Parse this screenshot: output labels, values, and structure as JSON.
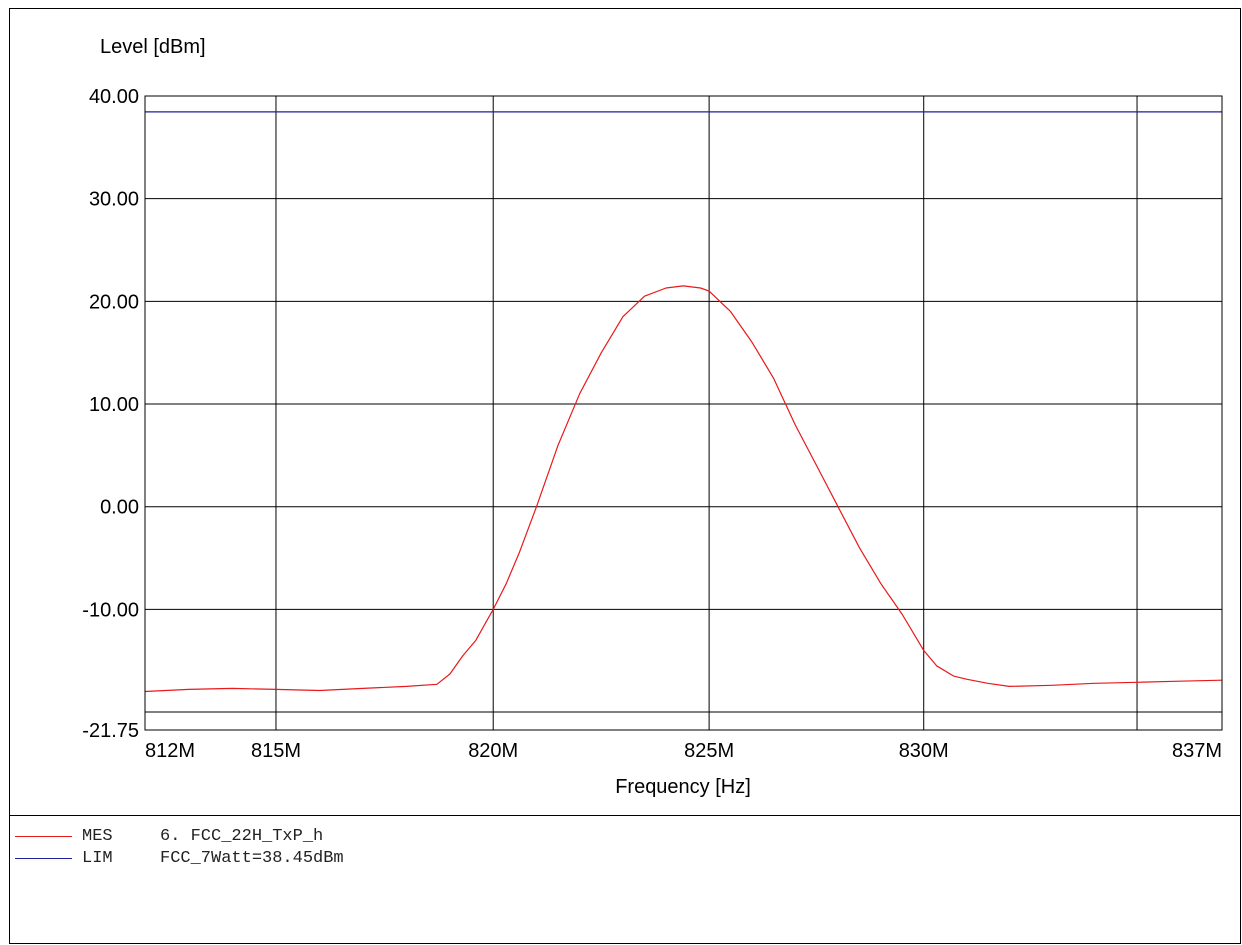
{
  "chart_data": {
    "type": "line",
    "ylabel": "Level [dBm]",
    "xlabel": "Frequency [Hz]",
    "x_scale": "log",
    "xlim": [
      812000000,
      837000000
    ],
    "ylim": [
      -21.75,
      40.0
    ],
    "y_ticks": [
      {
        "value": 40.0,
        "label": "40.00"
      },
      {
        "value": 30.0,
        "label": "30.00"
      },
      {
        "value": 20.0,
        "label": "20.00"
      },
      {
        "value": 10.0,
        "label": "10.00"
      },
      {
        "value": 0.0,
        "label": "0.00"
      },
      {
        "value": -10.0,
        "label": "-10.00"
      },
      {
        "value": -21.75,
        "label": "-21.75"
      }
    ],
    "x_ticks": [
      {
        "value": 812000000,
        "label": "812M"
      },
      {
        "value": 815000000,
        "label": "815M"
      },
      {
        "value": 820000000,
        "label": "820M"
      },
      {
        "value": 825000000,
        "label": "825M"
      },
      {
        "value": 830000000,
        "label": "830M"
      },
      {
        "value": 837000000,
        "label": "837M"
      }
    ],
    "x_gridlines": [
      815000000,
      820000000,
      825000000,
      830000000,
      835000000
    ],
    "y_gridlines": [
      30.0,
      20.0,
      10.0,
      0.0,
      -10.0,
      -20.0
    ],
    "grid": true,
    "series": [
      {
        "name": "MES",
        "color": "#e8191b",
        "x": [
          812000000,
          813000000,
          814000000,
          815000000,
          816000000,
          817000000,
          818000000,
          818700000,
          819000000,
          819300000,
          819600000,
          819800000,
          820000000,
          820300000,
          820600000,
          821000000,
          821500000,
          822000000,
          822500000,
          823000000,
          823500000,
          824000000,
          824400000,
          824800000,
          825000000,
          825500000,
          826000000,
          826500000,
          827000000,
          827500000,
          828000000,
          828500000,
          829000000,
          829500000,
          830000000,
          830300000,
          830700000,
          831000000,
          831500000,
          832000000,
          833000000,
          834000000,
          835000000,
          836000000,
          837000000
        ],
        "y": [
          -18.0,
          -17.8,
          -17.7,
          -17.8,
          -17.9,
          -17.7,
          -17.5,
          -17.3,
          -16.3,
          -14.5,
          -13.0,
          -11.5,
          -10.0,
          -7.5,
          -4.5,
          0.0,
          6.0,
          11.0,
          15.0,
          18.5,
          20.5,
          21.3,
          21.5,
          21.3,
          21.0,
          19.0,
          16.0,
          12.5,
          8.0,
          4.0,
          0.0,
          -4.0,
          -7.5,
          -10.5,
          -14.0,
          -15.5,
          -16.5,
          -16.8,
          -17.2,
          -17.5,
          -17.4,
          -17.2,
          -17.1,
          -17.0,
          -16.9
        ]
      },
      {
        "name": "LIM",
        "color": "#1e1e9f",
        "x": [
          812000000,
          837000000
        ],
        "y": [
          38.45,
          38.45
        ]
      }
    ],
    "bottom_line": -20.0
  },
  "legend": [
    {
      "tag": "MES",
      "text": "6. FCC_22H_TxP_h",
      "color": "#e8191b"
    },
    {
      "tag": "LIM",
      "text": "FCC_7Watt=38.45dBm",
      "color": "#1e1e9f"
    }
  ]
}
